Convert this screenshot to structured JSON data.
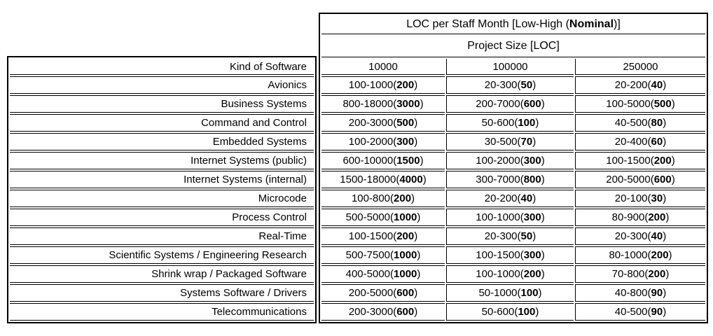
{
  "document": {
    "background": "#ffffff",
    "border_color": "#000000",
    "text_color": "#000000"
  },
  "table": {
    "title": {
      "pre": "LOC per Staff Month [Low-High (",
      "bold": "Nominal",
      "post": ")]"
    },
    "project_size_header": "Project Size [LOC]",
    "kind_header": "Kind of Software",
    "size_columns": [
      "10000",
      "100000",
      "250000"
    ],
    "value_format": "{low}-{high}({nominal})",
    "rows": [
      {
        "label": "Avionics",
        "values": [
          {
            "low": 100,
            "high": 1000,
            "nominal": 200
          },
          {
            "low": 20,
            "high": 300,
            "nominal": 50
          },
          {
            "low": 20,
            "high": 200,
            "nominal": 40
          }
        ]
      },
      {
        "label": "Business Systems",
        "values": [
          {
            "low": 800,
            "high": 18000,
            "nominal": 3000
          },
          {
            "low": 200,
            "high": 7000,
            "nominal": 600
          },
          {
            "low": 100,
            "high": 5000,
            "nominal": 500
          }
        ]
      },
      {
        "label": "Command and Control",
        "values": [
          {
            "low": 200,
            "high": 3000,
            "nominal": 500
          },
          {
            "low": 50,
            "high": 600,
            "nominal": 100
          },
          {
            "low": 40,
            "high": 500,
            "nominal": 80
          }
        ]
      },
      {
        "label": "Embedded Systems",
        "values": [
          {
            "low": 100,
            "high": 2000,
            "nominal": 300
          },
          {
            "low": 30,
            "high": 500,
            "nominal": 70
          },
          {
            "low": 20,
            "high": 400,
            "nominal": 60
          }
        ]
      },
      {
        "label": "Internet Systems (public)",
        "values": [
          {
            "low": 600,
            "high": 10000,
            "nominal": 1500
          },
          {
            "low": 100,
            "high": 2000,
            "nominal": 300
          },
          {
            "low": 100,
            "high": 1500,
            "nominal": 200
          }
        ]
      },
      {
        "label": "Internet Systems (internal)",
        "values": [
          {
            "low": 1500,
            "high": 18000,
            "nominal": 4000
          },
          {
            "low": 300,
            "high": 7000,
            "nominal": 800
          },
          {
            "low": 200,
            "high": 5000,
            "nominal": 600
          }
        ]
      },
      {
        "label": "Microcode",
        "values": [
          {
            "low": 100,
            "high": 800,
            "nominal": 200
          },
          {
            "low": 20,
            "high": 200,
            "nominal": 40
          },
          {
            "low": 20,
            "high": 100,
            "nominal": 30
          }
        ]
      },
      {
        "label": "Process Control",
        "values": [
          {
            "low": 500,
            "high": 5000,
            "nominal": 1000
          },
          {
            "low": 100,
            "high": 1000,
            "nominal": 300
          },
          {
            "low": 80,
            "high": 900,
            "nominal": 200
          }
        ]
      },
      {
        "label": "Real-Time",
        "values": [
          {
            "low": 100,
            "high": 1500,
            "nominal": 200
          },
          {
            "low": 20,
            "high": 300,
            "nominal": 50
          },
          {
            "low": 20,
            "high": 300,
            "nominal": 40
          }
        ]
      },
      {
        "label": "Scientific Systems / Engineering Research",
        "values": [
          {
            "low": 500,
            "high": 7500,
            "nominal": 1000
          },
          {
            "low": 100,
            "high": 1500,
            "nominal": 300
          },
          {
            "low": 80,
            "high": 1000,
            "nominal": 200
          }
        ]
      },
      {
        "label": "Shrink wrap / Packaged Software",
        "values": [
          {
            "low": 400,
            "high": 5000,
            "nominal": 1000
          },
          {
            "low": 100,
            "high": 1000,
            "nominal": 200
          },
          {
            "low": 70,
            "high": 800,
            "nominal": 200
          }
        ]
      },
      {
        "label": "Systems Software / Drivers",
        "values": [
          {
            "low": 200,
            "high": 5000,
            "nominal": 600
          },
          {
            "low": 50,
            "high": 1000,
            "nominal": 100
          },
          {
            "low": 40,
            "high": 800,
            "nominal": 90
          }
        ]
      },
      {
        "label": "Telecommunications",
        "values": [
          {
            "low": 200,
            "high": 3000,
            "nominal": 600
          },
          {
            "low": 50,
            "high": 600,
            "nominal": 100
          },
          {
            "low": 40,
            "high": 500,
            "nominal": 90
          }
        ]
      }
    ]
  }
}
